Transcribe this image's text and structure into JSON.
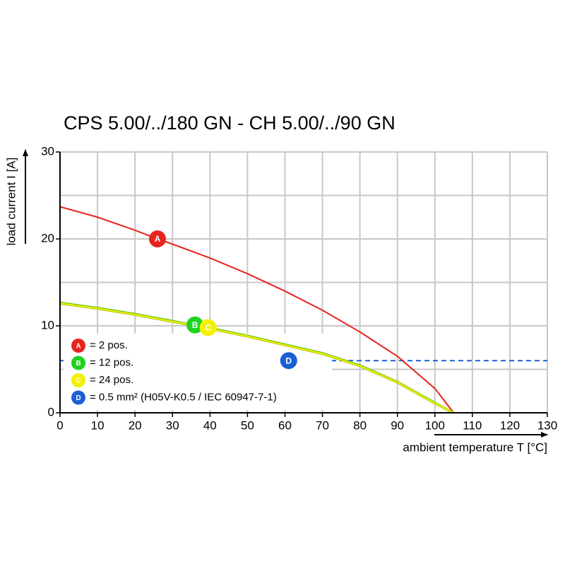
{
  "chart_data": {
    "type": "line",
    "title": "CPS 5.00/../180 GN - CH 5.00/../90 GN",
    "xlabel": "ambient temperature T [°C]",
    "ylabel": "load current I [A]",
    "xlim": [
      0,
      130
    ],
    "xticks": [
      0,
      10,
      20,
      30,
      40,
      50,
      60,
      70,
      80,
      90,
      100,
      110,
      120,
      130
    ],
    "ylim": [
      0,
      30
    ],
    "yticks": [
      0,
      10,
      20,
      30
    ],
    "yminor": [
      5,
      15,
      25
    ],
    "grid": true,
    "series": [
      {
        "name": "= 2 pos.",
        "marker": "A",
        "color": "#e8231d",
        "marker_x": 26,
        "marker_y": 20,
        "x": [
          0,
          10,
          20,
          26,
          30,
          40,
          50,
          60,
          70,
          80,
          90,
          100,
          105
        ],
        "values": [
          23.7,
          22.5,
          21,
          20,
          19.4,
          17.8,
          16,
          14,
          11.8,
          9.3,
          6.5,
          2.8,
          0
        ]
      },
      {
        "name": "= 12 pos.",
        "marker": "B",
        "color": "#1fd21f",
        "marker_x": 36,
        "marker_y": 10.1,
        "x": [
          0,
          10,
          20,
          30,
          36,
          40,
          50,
          60,
          70,
          80,
          90,
          100,
          105
        ],
        "values": [
          12.7,
          12.1,
          11.4,
          10.6,
          10.1,
          9.8,
          8.9,
          7.9,
          6.9,
          5.5,
          3.6,
          1.2,
          0
        ]
      },
      {
        "name": "= 24 pos.",
        "marker": "C",
        "color": "#f2f200",
        "marker_x": 39.5,
        "marker_y": 9.8,
        "x": [
          0,
          10,
          20,
          30,
          40,
          50,
          60,
          70,
          80,
          90,
          100,
          105
        ],
        "values": [
          12.6,
          12.0,
          11.3,
          10.5,
          9.7,
          8.8,
          7.8,
          6.8,
          5.4,
          3.5,
          1.1,
          0
        ]
      },
      {
        "name": "= 0.5 mm² (H05V-K0.5 / IEC 60947-7-1)",
        "marker": "D",
        "color": "#1a5fd6",
        "dash": true,
        "marker_x": 61,
        "marker_y": 6,
        "x": [
          0,
          130
        ],
        "values": [
          6,
          6
        ]
      }
    ]
  }
}
